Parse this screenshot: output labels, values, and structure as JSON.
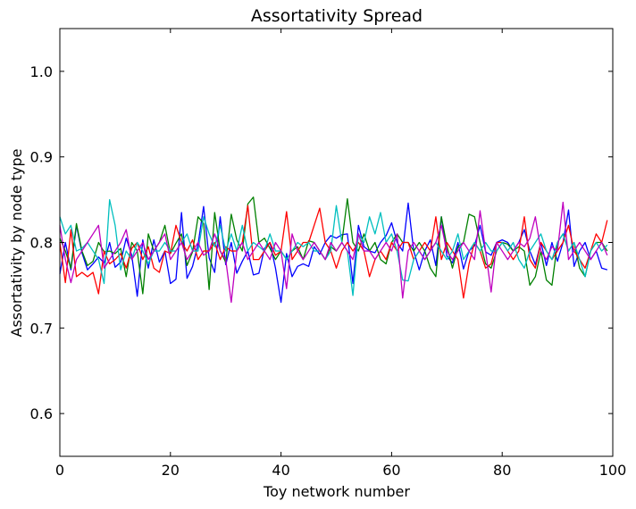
{
  "chart_data": {
    "type": "line",
    "title": "Assortativity Spread",
    "xlabel": "Toy network number",
    "ylabel": "Assortativity by node type",
    "xlim": [
      0,
      100
    ],
    "ylim": [
      0.55,
      1.05
    ],
    "xticks": [
      0,
      20,
      40,
      60,
      80,
      100
    ],
    "xtick_labels": [
      "0",
      "20",
      "40",
      "60",
      "80",
      "100"
    ],
    "yticks": [
      0.6,
      0.7,
      0.8,
      0.9,
      1.0
    ],
    "ytick_labels": [
      "0.6",
      "0.7",
      "0.8",
      "0.9",
      "1.0"
    ],
    "grid": false,
    "legend": "none",
    "series": [
      {
        "color": "#0000ff",
        "values": [
          0.763,
          0.8,
          0.768,
          0.82,
          0.788,
          0.768,
          0.775,
          0.783,
          0.776,
          0.8,
          0.771,
          0.777,
          0.805,
          0.785,
          0.737,
          0.803,
          0.77,
          0.803,
          0.777,
          0.79,
          0.752,
          0.757,
          0.835,
          0.758,
          0.772,
          0.798,
          0.842,
          0.782,
          0.765,
          0.83,
          0.774,
          0.8,
          0.764,
          0.778,
          0.79,
          0.762,
          0.764,
          0.793,
          0.8,
          0.77,
          0.73,
          0.787,
          0.76,
          0.772,
          0.775,
          0.772,
          0.795,
          0.786,
          0.8,
          0.808,
          0.805,
          0.809,
          0.81,
          0.752,
          0.82,
          0.795,
          0.79,
          0.788,
          0.8,
          0.808,
          0.823,
          0.8,
          0.79,
          0.846,
          0.79,
          0.768,
          0.79,
          0.803,
          0.773,
          0.83,
          0.784,
          0.776,
          0.8,
          0.769,
          0.79,
          0.796,
          0.82,
          0.789,
          0.785,
          0.8,
          0.803,
          0.8,
          0.79,
          0.8,
          0.815,
          0.79,
          0.774,
          0.8,
          0.773,
          0.8,
          0.778,
          0.8,
          0.838,
          0.772,
          0.79,
          0.8,
          0.78,
          0.79,
          0.77,
          0.768
        ]
      },
      {
        "color": "#008000",
        "values": [
          0.805,
          0.79,
          0.77,
          0.822,
          0.79,
          0.773,
          0.778,
          0.8,
          0.789,
          0.79,
          0.787,
          0.793,
          0.76,
          0.8,
          0.79,
          0.74,
          0.81,
          0.79,
          0.8,
          0.82,
          0.787,
          0.799,
          0.81,
          0.773,
          0.789,
          0.83,
          0.822,
          0.745,
          0.835,
          0.79,
          0.777,
          0.833,
          0.803,
          0.79,
          0.845,
          0.853,
          0.8,
          0.805,
          0.793,
          0.78,
          0.79,
          0.78,
          0.79,
          0.795,
          0.78,
          0.802,
          0.8,
          0.79,
          0.78,
          0.795,
          0.79,
          0.8,
          0.851,
          0.8,
          0.79,
          0.81,
          0.79,
          0.8,
          0.78,
          0.775,
          0.8,
          0.81,
          0.8,
          0.8,
          0.79,
          0.8,
          0.79,
          0.77,
          0.76,
          0.83,
          0.796,
          0.77,
          0.795,
          0.8,
          0.833,
          0.83,
          0.8,
          0.775,
          0.77,
          0.79,
          0.8,
          0.798,
          0.79,
          0.795,
          0.79,
          0.75,
          0.76,
          0.79,
          0.756,
          0.75,
          0.8,
          0.81,
          0.79,
          0.8,
          0.77,
          0.76,
          0.79,
          0.8,
          0.8,
          0.79
        ]
      },
      {
        "color": "#ff0000",
        "values": [
          0.8,
          0.753,
          0.815,
          0.76,
          0.765,
          0.76,
          0.765,
          0.74,
          0.79,
          0.775,
          0.78,
          0.787,
          0.77,
          0.793,
          0.8,
          0.78,
          0.795,
          0.77,
          0.765,
          0.79,
          0.787,
          0.82,
          0.8,
          0.79,
          0.803,
          0.78,
          0.79,
          0.79,
          0.8,
          0.78,
          0.795,
          0.79,
          0.79,
          0.8,
          0.843,
          0.78,
          0.78,
          0.79,
          0.8,
          0.785,
          0.79,
          0.836,
          0.78,
          0.79,
          0.8,
          0.8,
          0.82,
          0.84,
          0.8,
          0.79,
          0.77,
          0.79,
          0.8,
          0.79,
          0.8,
          0.79,
          0.76,
          0.78,
          0.79,
          0.78,
          0.8,
          0.79,
          0.8,
          0.8,
          0.78,
          0.79,
          0.8,
          0.79,
          0.83,
          0.78,
          0.8,
          0.79,
          0.78,
          0.735,
          0.775,
          0.8,
          0.79,
          0.77,
          0.775,
          0.8,
          0.8,
          0.79,
          0.78,
          0.79,
          0.83,
          0.78,
          0.77,
          0.8,
          0.79,
          0.78,
          0.79,
          0.8,
          0.82,
          0.79,
          0.78,
          0.77,
          0.79,
          0.81,
          0.8,
          0.826
        ]
      },
      {
        "color": "#00bfbf",
        "values": [
          0.83,
          0.81,
          0.82,
          0.79,
          0.793,
          0.8,
          0.79,
          0.78,
          0.752,
          0.85,
          0.82,
          0.768,
          0.79,
          0.78,
          0.8,
          0.79,
          0.775,
          0.79,
          0.79,
          0.8,
          0.79,
          0.79,
          0.8,
          0.81,
          0.79,
          0.79,
          0.83,
          0.81,
          0.795,
          0.82,
          0.79,
          0.81,
          0.79,
          0.82,
          0.79,
          0.8,
          0.795,
          0.79,
          0.81,
          0.79,
          0.79,
          0.78,
          0.79,
          0.8,
          0.795,
          0.8,
          0.79,
          0.79,
          0.78,
          0.79,
          0.843,
          0.8,
          0.79,
          0.738,
          0.81,
          0.8,
          0.83,
          0.81,
          0.835,
          0.8,
          0.81,
          0.79,
          0.756,
          0.755,
          0.78,
          0.79,
          0.78,
          0.79,
          0.8,
          0.79,
          0.78,
          0.79,
          0.81,
          0.78,
          0.79,
          0.8,
          0.79,
          0.8,
          0.79,
          0.79,
          0.8,
          0.79,
          0.8,
          0.78,
          0.77,
          0.79,
          0.8,
          0.81,
          0.79,
          0.78,
          0.8,
          0.81,
          0.79,
          0.8,
          0.78,
          0.76,
          0.79,
          0.8,
          0.79,
          0.797
        ]
      },
      {
        "color": "#bf00bf",
        "values": [
          0.82,
          0.78,
          0.753,
          0.78,
          0.79,
          0.8,
          0.81,
          0.82,
          0.77,
          0.78,
          0.79,
          0.8,
          0.815,
          0.78,
          0.79,
          0.8,
          0.78,
          0.79,
          0.8,
          0.81,
          0.78,
          0.79,
          0.8,
          0.78,
          0.79,
          0.8,
          0.785,
          0.79,
          0.81,
          0.79,
          0.78,
          0.73,
          0.79,
          0.8,
          0.78,
          0.79,
          0.8,
          0.79,
          0.78,
          0.8,
          0.79,
          0.746,
          0.81,
          0.79,
          0.78,
          0.79,
          0.8,
          0.79,
          0.78,
          0.8,
          0.79,
          0.8,
          0.79,
          0.78,
          0.81,
          0.79,
          0.79,
          0.78,
          0.79,
          0.8,
          0.79,
          0.81,
          0.735,
          0.79,
          0.8,
          0.79,
          0.78,
          0.79,
          0.8,
          0.82,
          0.79,
          0.78,
          0.79,
          0.8,
          0.79,
          0.78,
          0.837,
          0.79,
          0.742,
          0.8,
          0.79,
          0.78,
          0.79,
          0.8,
          0.795,
          0.805,
          0.83,
          0.79,
          0.78,
          0.795,
          0.79,
          0.847,
          0.78,
          0.79,
          0.8,
          0.79,
          0.78,
          0.79,
          0.8,
          0.785
        ]
      }
    ]
  }
}
